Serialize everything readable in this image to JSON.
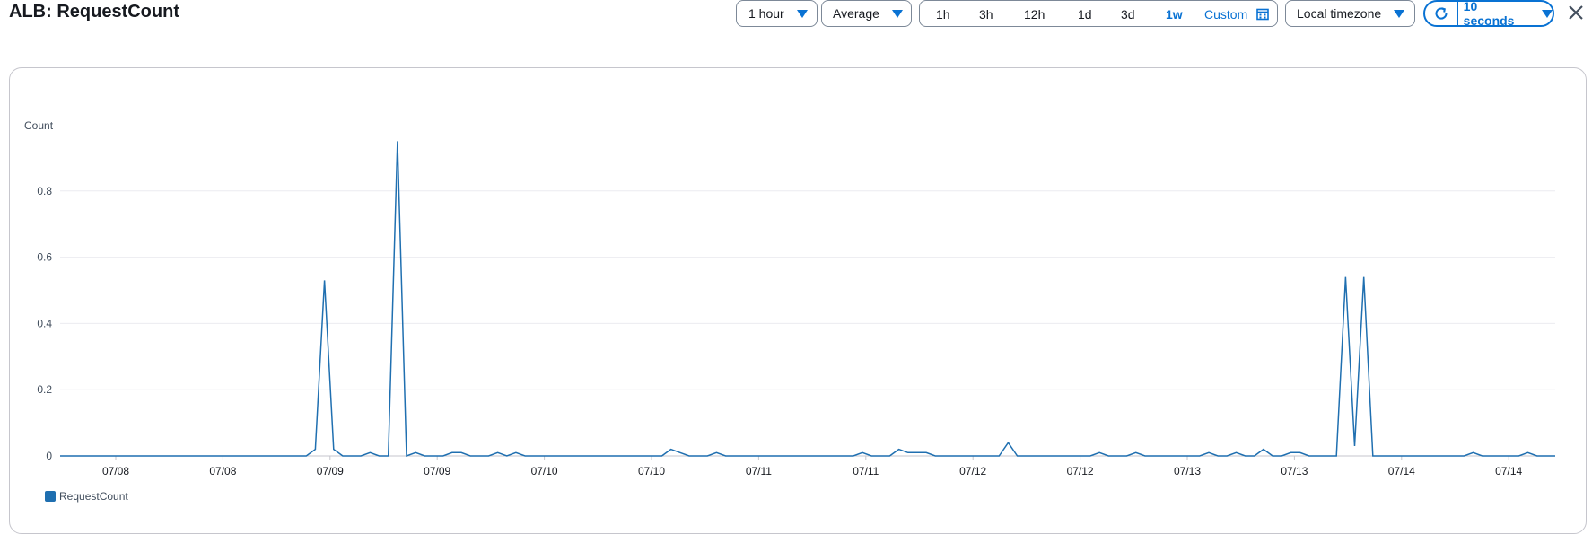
{
  "header": {
    "title": "ALB: RequestCount"
  },
  "toolbar": {
    "period": "1 hour",
    "statistic": "Average",
    "ranges": [
      {
        "label": "1h",
        "active": false
      },
      {
        "label": "3h",
        "active": false
      },
      {
        "label": "12h",
        "active": false
      },
      {
        "label": "1d",
        "active": false
      },
      {
        "label": "3d",
        "active": false
      },
      {
        "label": "1w",
        "active": true
      }
    ],
    "custom": "Custom",
    "timezone": "Local timezone",
    "refresh_interval": "10 seconds"
  },
  "colors": {
    "series": "#1f6fb0",
    "accent": "#0972d3"
  },
  "chart_data": {
    "type": "line",
    "ylabel": "Count",
    "ylim": [
      0,
      1
    ],
    "y_ticks": [
      0,
      0.2,
      0.4,
      0.6,
      0.8
    ],
    "x_tick_labels": [
      "07/08",
      "07/08",
      "07/09",
      "07/09",
      "07/10",
      "07/10",
      "07/11",
      "07/11",
      "07/12",
      "07/12",
      "07/13",
      "07/13",
      "07/14",
      "07/14"
    ],
    "series": [
      {
        "name": "RequestCount",
        "values": [
          0,
          0,
          0,
          0,
          0,
          0,
          0,
          0,
          0,
          0,
          0,
          0,
          0,
          0,
          0,
          0,
          0,
          0,
          0,
          0,
          0,
          0,
          0,
          0,
          0,
          0,
          0,
          0,
          0.02,
          0.53,
          0.02,
          0,
          0,
          0,
          0.01,
          0,
          0,
          0.95,
          0,
          0.01,
          0,
          0,
          0,
          0.01,
          0.01,
          0,
          0,
          0,
          0.01,
          0,
          0.01,
          0,
          0,
          0,
          0,
          0,
          0,
          0,
          0,
          0,
          0,
          0,
          0,
          0,
          0,
          0,
          0,
          0.02,
          0.01,
          0,
          0,
          0,
          0.01,
          0,
          0,
          0,
          0,
          0,
          0,
          0,
          0,
          0,
          0,
          0,
          0,
          0,
          0,
          0,
          0.01,
          0,
          0,
          0,
          0.02,
          0.01,
          0.01,
          0.01,
          0,
          0,
          0,
          0,
          0,
          0,
          0,
          0,
          0.04,
          0,
          0,
          0,
          0,
          0,
          0,
          0,
          0,
          0,
          0.01,
          0,
          0,
          0,
          0.01,
          0,
          0,
          0,
          0,
          0,
          0,
          0,
          0.01,
          0,
          0,
          0.01,
          0,
          0,
          0.02,
          0,
          0,
          0.01,
          0.01,
          0,
          0,
          0,
          0,
          0.54,
          0.03,
          0.54,
          0,
          0,
          0,
          0,
          0,
          0,
          0,
          0,
          0,
          0,
          0,
          0.01,
          0,
          0,
          0,
          0,
          0,
          0.01,
          0,
          0,
          0
        ],
        "color": "#1f6fb0"
      }
    ],
    "legend": "bottom-left"
  }
}
